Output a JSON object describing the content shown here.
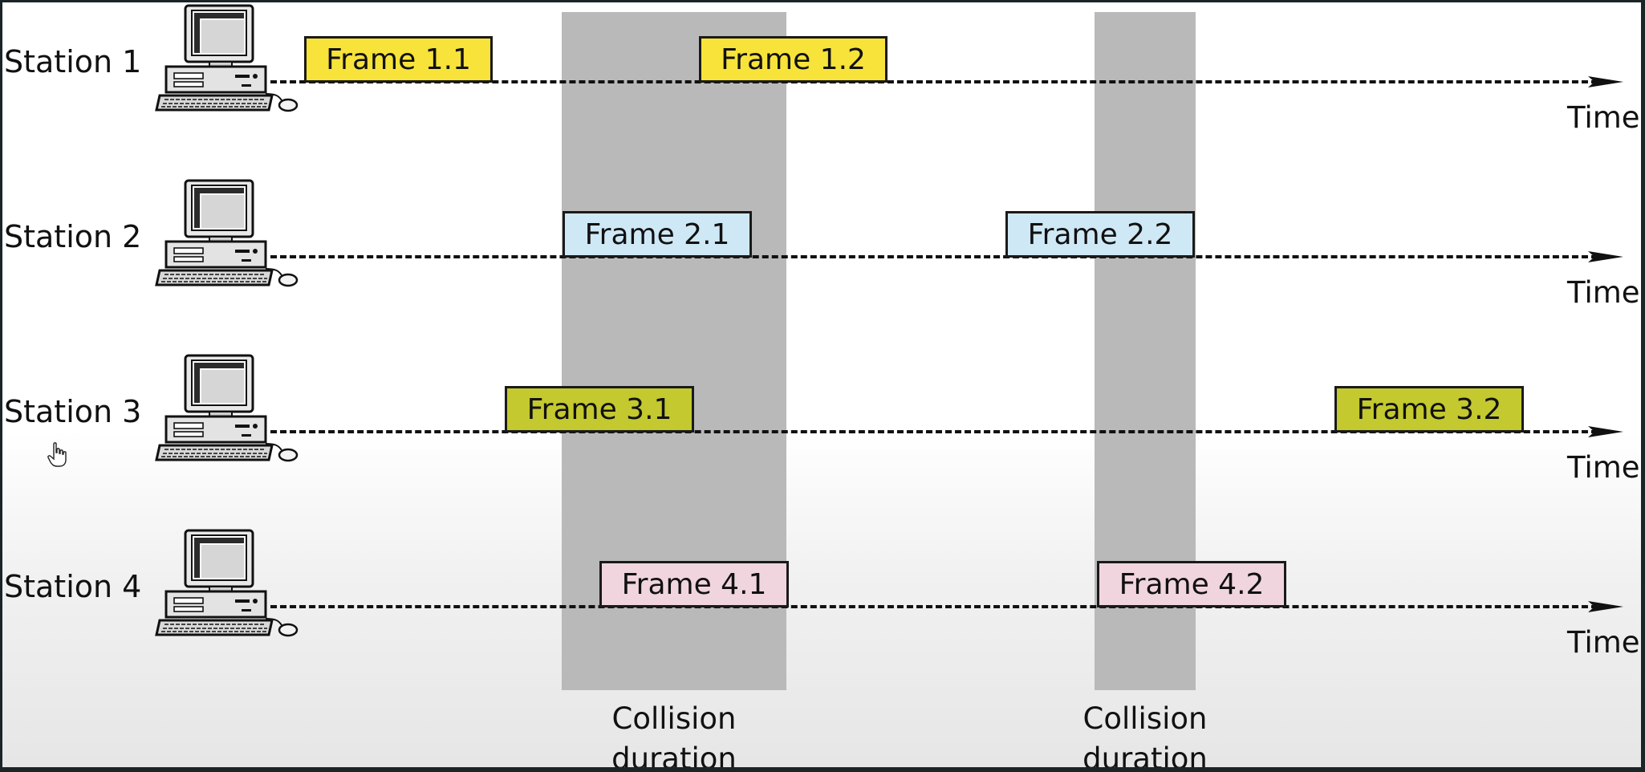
{
  "stations": [
    {
      "label": "Station 1",
      "time_label": "Time"
    },
    {
      "label": "Station 2",
      "time_label": "Time"
    },
    {
      "label": "Station 3",
      "time_label": "Time"
    },
    {
      "label": "Station 4",
      "time_label": "Time"
    }
  ],
  "frames": {
    "f11": {
      "label": "Frame 1.1",
      "color": "#f7e33a"
    },
    "f12": {
      "label": "Frame 1.2",
      "color": "#f7e33a"
    },
    "f21": {
      "label": "Frame 2.1",
      "color": "#cfe8f6"
    },
    "f22": {
      "label": "Frame 2.2",
      "color": "#cfe8f6"
    },
    "f31": {
      "label": "Frame 3.1",
      "color": "#c3c92e"
    },
    "f32": {
      "label": "Frame 3.2",
      "color": "#c3c92e"
    },
    "f41": {
      "label": "Frame 4.1",
      "color": "#f0d5de"
    },
    "f42": {
      "label": "Frame 4.2",
      "color": "#f0d5de"
    }
  },
  "collisions": [
    {
      "line1": "Collision",
      "line2": "duration"
    },
    {
      "line1": "Collision",
      "line2": "duration"
    }
  ],
  "icons": {
    "station": "desktop-computer-icon",
    "time_arrow": "arrow-right-icon",
    "cursor": "hand-cursor-icon"
  }
}
